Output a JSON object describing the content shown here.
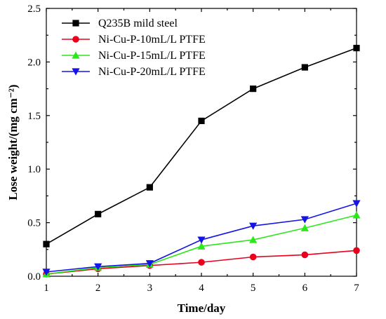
{
  "chart_data": {
    "type": "line",
    "xlabel": "Time/day",
    "ylabel": "Lose weight/(mg  cm⁻²)",
    "xlim": [
      1,
      7
    ],
    "ylim": [
      0.0,
      2.5
    ],
    "x_ticks": [
      1,
      2,
      3,
      4,
      5,
      6,
      7
    ],
    "y_ticks": [
      0.0,
      0.5,
      1.0,
      1.5,
      2.0,
      2.5
    ],
    "y_tick_labels": [
      "0.0",
      "0.5",
      "1.0",
      "1.5",
      "2.0",
      "2.5"
    ],
    "legend_position": "top-left",
    "x": [
      1,
      2,
      3,
      4,
      5,
      6,
      7
    ],
    "series": [
      {
        "name": "Q235B mild steel",
        "color": "#000000",
        "marker": "square",
        "values": [
          0.3,
          0.58,
          0.83,
          1.45,
          1.75,
          1.95,
          2.13
        ]
      },
      {
        "name": "Ni-Cu-P-10mL/L PTFE",
        "color": "#e8001c",
        "marker": "circle",
        "values": [
          0.02,
          0.07,
          0.1,
          0.13,
          0.18,
          0.2,
          0.24
        ]
      },
      {
        "name": "Ni-Cu-P-15mL/L PTFE",
        "color": "#2ee61c",
        "marker": "triangle-up",
        "values": [
          0.02,
          0.08,
          0.11,
          0.28,
          0.34,
          0.45,
          0.57
        ]
      },
      {
        "name": "Ni-Cu-P-20mL/L PTFE",
        "color": "#1414e6",
        "marker": "triangle-down",
        "values": [
          0.04,
          0.09,
          0.12,
          0.34,
          0.47,
          0.53,
          0.68
        ]
      }
    ]
  }
}
